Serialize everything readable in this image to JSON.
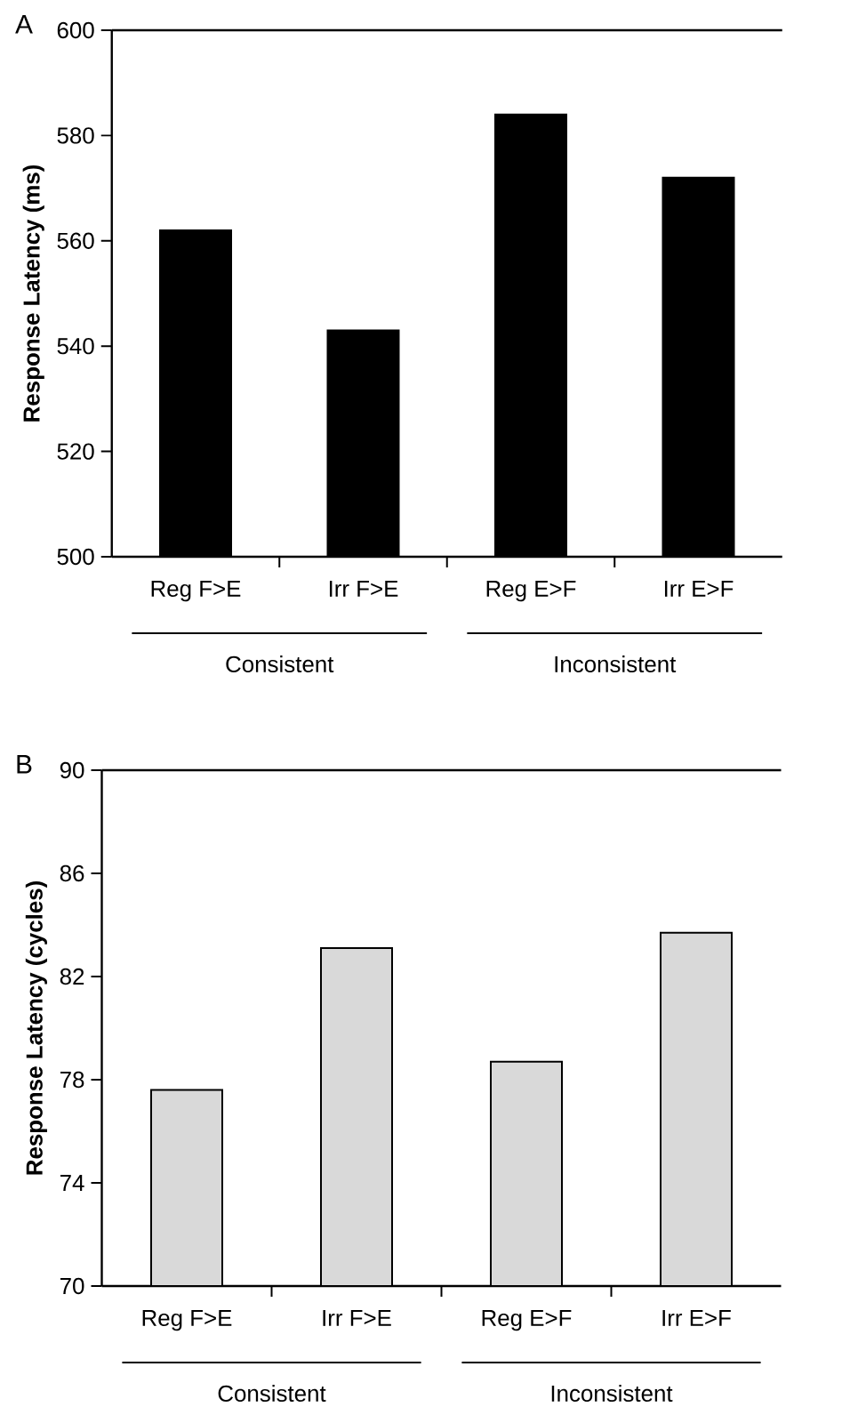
{
  "chart_data": [
    {
      "type": "bar",
      "title": "A",
      "ylabel": "Response Latency (ms)",
      "categories": [
        "Reg F>E",
        "Irr F>E",
        "Reg E>F",
        "Irr E>F"
      ],
      "values": [
        562,
        543,
        584,
        572
      ],
      "color": "#000000",
      "ylim": [
        500,
        600
      ],
      "yticks": [
        500,
        520,
        540,
        560,
        580,
        600
      ],
      "annotations": [
        "Consistent",
        "Inconsistent"
      ]
    },
    {
      "type": "bar",
      "title": "B",
      "ylabel": "Response Latency (cycles)",
      "categories": [
        "Reg F>E",
        "Irr F>E",
        "Reg E>F",
        "Irr E>F"
      ],
      "values": [
        77.6,
        83.1,
        78.7,
        83.7
      ],
      "color": "#d9d9d9",
      "ylim": [
        70,
        90
      ],
      "yticks": [
        70,
        74,
        78,
        82,
        86,
        90
      ],
      "annotations": [
        "Consistent",
        "Inconsistent"
      ]
    }
  ]
}
